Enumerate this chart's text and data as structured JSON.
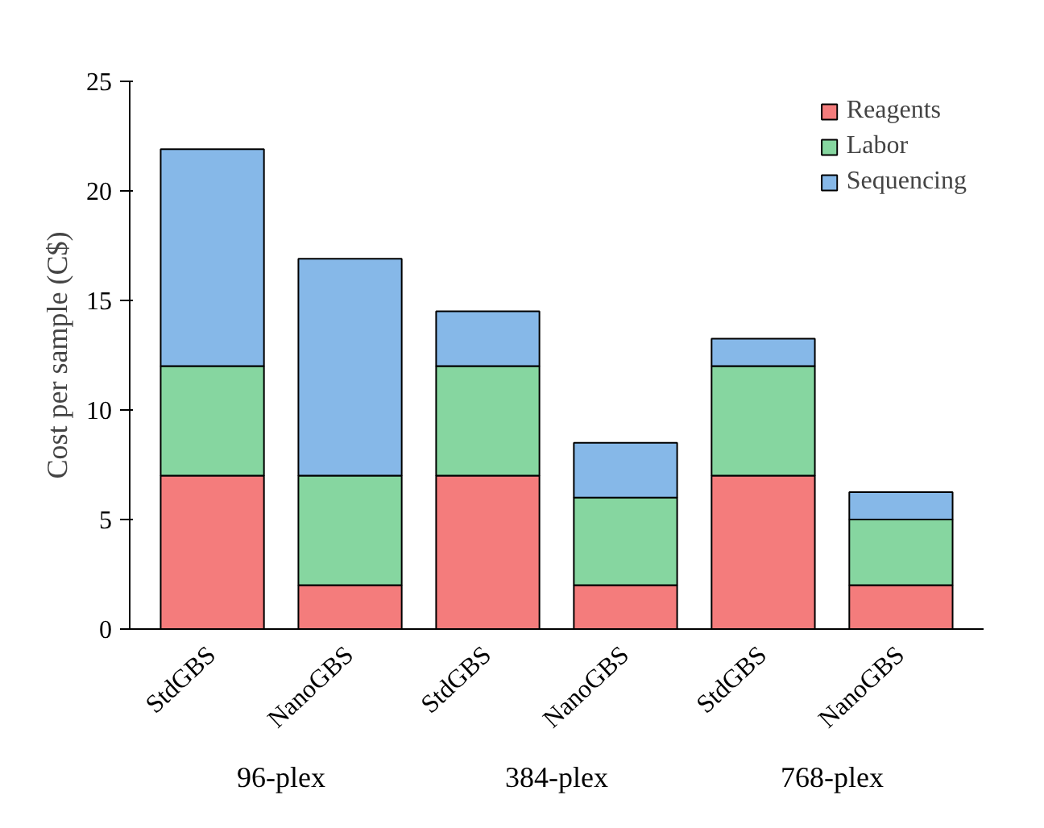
{
  "chart_data": {
    "type": "bar",
    "stacked": true,
    "ylabel": "Cost per sample (C$)",
    "categories": [
      "StdGBS",
      "NanoGBS",
      "StdGBS",
      "NanoGBS",
      "StdGBS",
      "NanoGBS"
    ],
    "series": [
      {
        "name": "Reagents",
        "color": "#f47c7c",
        "values": [
          7,
          2,
          7,
          2,
          7,
          2
        ]
      },
      {
        "name": "Labor",
        "color": "#86d6a0",
        "values": [
          5,
          5,
          5,
          4,
          5,
          3
        ]
      },
      {
        "name": "Sequencing",
        "color": "#86b8e8",
        "values": [
          9.9,
          9.9,
          2.5,
          2.5,
          1.25,
          1.25
        ]
      }
    ],
    "ylim": [
      0,
      25
    ],
    "yticks": [
      0,
      5,
      10,
      15,
      20,
      25
    ],
    "grid": false,
    "legend": "top right",
    "annotations": [
      "96-plex",
      "384-plex",
      "768-plex"
    ]
  }
}
